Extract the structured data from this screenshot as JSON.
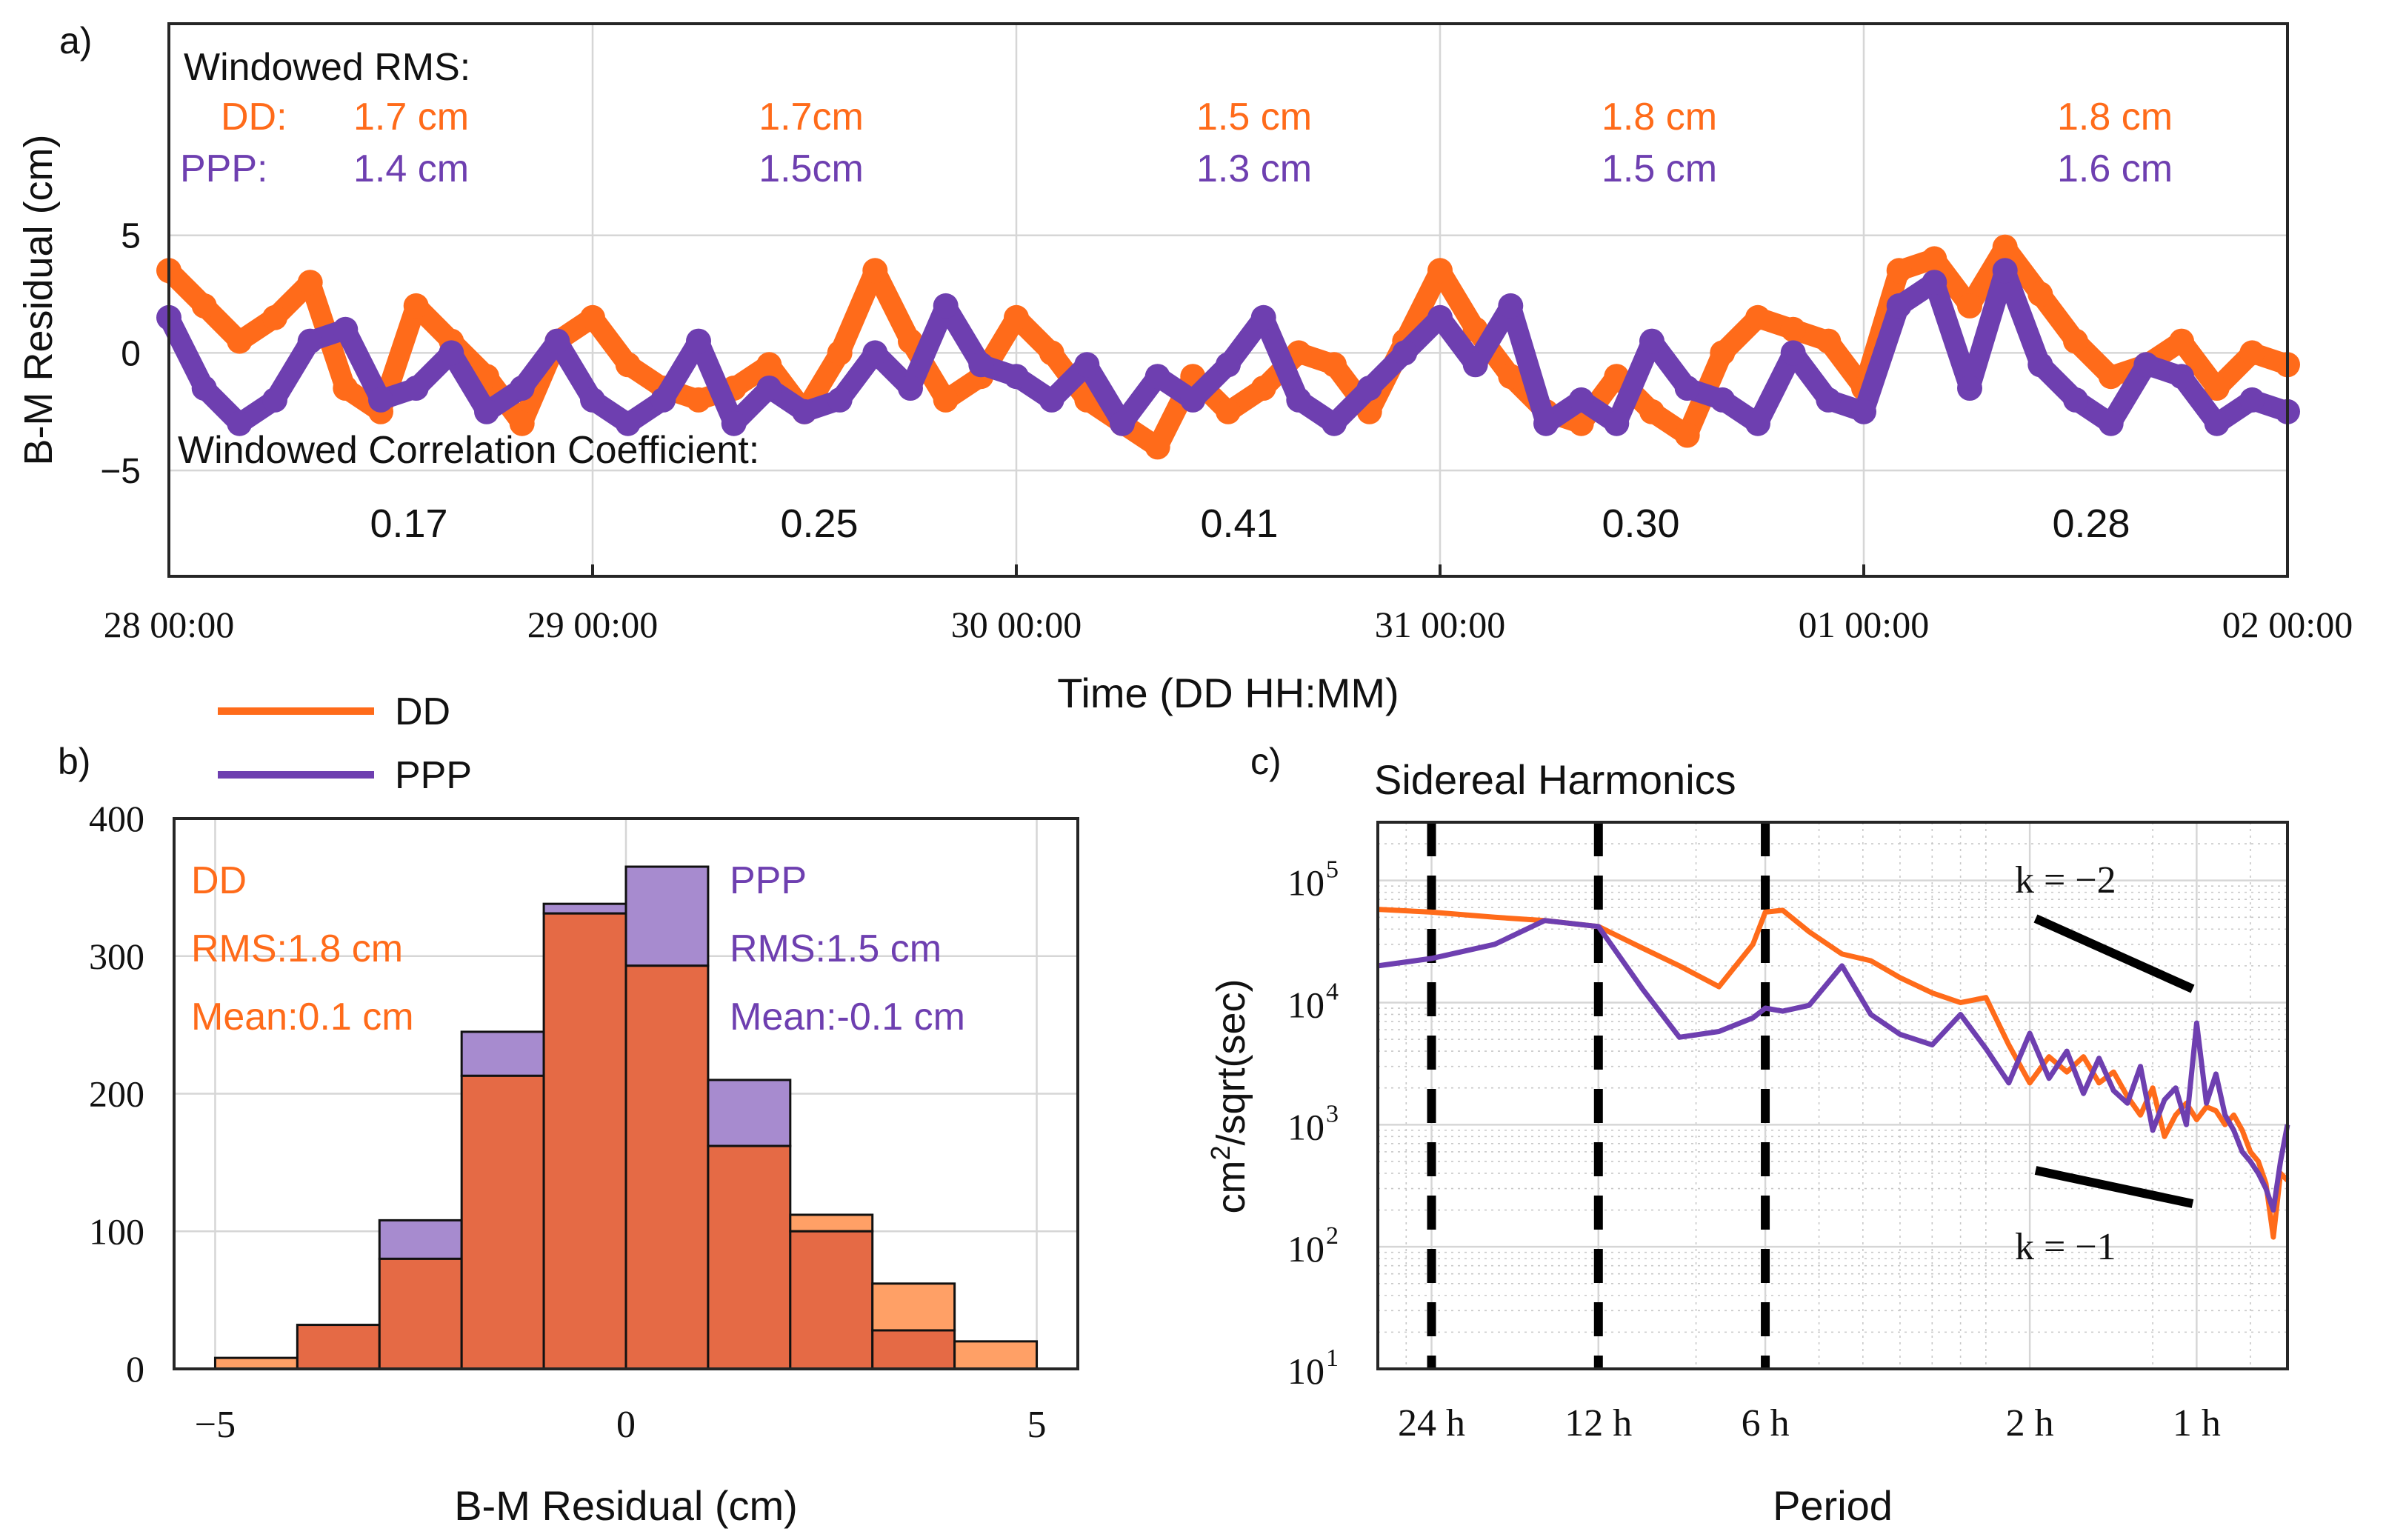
{
  "colors": {
    "dd": "#ff6b1a",
    "ppp": "#6e3fb0",
    "dd_bar": "#e56a45",
    "ppp_bar": "#a78bcf",
    "dd_bar_light": "#ffa066",
    "text": "#111111"
  },
  "legend": {
    "dd": "DD",
    "ppp": "PPP"
  },
  "panel_a": {
    "letter": "a)",
    "ylabel": "B-M Residual (cm)",
    "xlabel": "Time (DD HH:MM)",
    "rms_title": "Windowed RMS:",
    "dd_prefix": "DD:",
    "ppp_prefix": "PPP:",
    "corr_title": "Windowed Correlation Coefficient:",
    "windows": [
      {
        "dd_rms": "1.7 cm",
        "ppp_rms": "1.4 cm",
        "corr": "0.17"
      },
      {
        "dd_rms": "1.7cm",
        "ppp_rms": "1.5cm",
        "corr": "0.25"
      },
      {
        "dd_rms": "1.5 cm",
        "ppp_rms": "1.3 cm",
        "corr": "0.41"
      },
      {
        "dd_rms": "1.8 cm",
        "ppp_rms": "1.5 cm",
        "corr": "0.30"
      },
      {
        "dd_rms": "1.8 cm",
        "ppp_rms": "1.6 cm",
        "corr": "0.28"
      }
    ]
  },
  "panel_b": {
    "letter": "b)",
    "xlabel": "B-M Residual (cm)",
    "dd_stats": [
      "DD",
      "RMS:1.8 cm",
      "Mean:0.1 cm"
    ],
    "ppp_stats": [
      "PPP",
      "RMS:1.5 cm",
      "Mean:-0.1 cm"
    ]
  },
  "panel_c": {
    "letter": "c)",
    "title": "Sidereal Harmonics",
    "xlabel": "Period",
    "ylabel_base": "cm",
    "ylabel_sup": "2",
    "ylabel_rest": "/sqrt(sec)",
    "k_minus2": "k = −2",
    "k_minus1": "k = −1"
  },
  "chart_data": [
    {
      "type": "scatter",
      "title": "",
      "xlabel": "Time (DD HH:MM)",
      "ylabel": "B-M Residual (cm)",
      "x_range_hours": [
        0,
        120
      ],
      "ylim": [
        -9.5,
        14
      ],
      "yticks": [
        -5,
        0,
        5
      ],
      "ytick_labels": [
        "−5",
        "0",
        "5"
      ],
      "xticks_hours": [
        0,
        24,
        48,
        72,
        96,
        120
      ],
      "xtick_labels": [
        "28 00:00",
        "29 00:00",
        "30 00:00",
        "31 00:00",
        "01 00:00",
        "02 00:00"
      ],
      "grid": true,
      "series": [
        {
          "name": "DD",
          "x": [
            0,
            2,
            4,
            6,
            8,
            10,
            12,
            14,
            16,
            18,
            20,
            22,
            24,
            26,
            28,
            30,
            32,
            34,
            36,
            38,
            40,
            42,
            44,
            46,
            48,
            50,
            52,
            54,
            56,
            58,
            60,
            62,
            64,
            66,
            68,
            70,
            72,
            74,
            76,
            78,
            80,
            82,
            84,
            86,
            88,
            90,
            92,
            94,
            96,
            98,
            100,
            102,
            104,
            106,
            108,
            110,
            112,
            114,
            116,
            118,
            120
          ],
          "y": [
            3.5,
            2.0,
            0.5,
            1.5,
            3.0,
            -1.5,
            -2.5,
            2.0,
            0.5,
            -1.0,
            -3.0,
            0.5,
            1.5,
            -0.5,
            -1.5,
            -2.0,
            -1.5,
            -0.5,
            -2.5,
            0.0,
            3.5,
            0.5,
            -2.0,
            -1.0,
            1.5,
            0.0,
            -2.0,
            -3.0,
            -4.0,
            -1.0,
            -2.5,
            -1.5,
            0.0,
            -0.5,
            -2.5,
            0.5,
            3.5,
            1.0,
            -1.0,
            -2.5,
            -3.0,
            -1.0,
            -2.5,
            -3.5,
            0.0,
            1.5,
            1.0,
            0.5,
            -1.5,
            3.5,
            4.0,
            2.0,
            4.5,
            2.5,
            0.5,
            -1.0,
            -0.5,
            0.5,
            -1.5,
            0.0,
            -0.5
          ]
        },
        {
          "name": "PPP",
          "x": [
            0,
            2,
            4,
            6,
            8,
            10,
            12,
            14,
            16,
            18,
            20,
            22,
            24,
            26,
            28,
            30,
            32,
            34,
            36,
            38,
            40,
            42,
            44,
            46,
            48,
            50,
            52,
            54,
            56,
            58,
            60,
            62,
            64,
            66,
            68,
            70,
            72,
            74,
            76,
            78,
            80,
            82,
            84,
            86,
            88,
            90,
            92,
            94,
            96,
            98,
            100,
            102,
            104,
            106,
            108,
            110,
            112,
            114,
            116,
            118,
            120
          ],
          "y": [
            1.5,
            -1.5,
            -3.0,
            -2.0,
            0.5,
            1.0,
            -2.0,
            -1.5,
            0.0,
            -2.5,
            -1.5,
            0.5,
            -2.0,
            -3.0,
            -2.0,
            0.5,
            -3.0,
            -1.5,
            -2.5,
            -2.0,
            0.0,
            -1.5,
            2.0,
            -0.5,
            -1.0,
            -2.0,
            -0.5,
            -3.0,
            -1.0,
            -2.0,
            -0.5,
            1.5,
            -2.0,
            -3.0,
            -1.5,
            0.0,
            1.5,
            -0.5,
            2.0,
            -3.0,
            -2.0,
            -3.0,
            0.5,
            -1.5,
            -2.0,
            -3.0,
            0.0,
            -2.0,
            -2.5,
            2.0,
            3.0,
            -1.5,
            3.5,
            -0.5,
            -2.0,
            -3.0,
            -0.5,
            -1.0,
            -3.0,
            -2.0,
            -2.5
          ]
        }
      ]
    },
    {
      "type": "bar",
      "title": "",
      "xlabel": "B-M Residual (cm)",
      "ylabel": "",
      "bin_edges": [
        -5,
        -4,
        -3,
        -2,
        -1,
        0,
        1,
        2,
        3,
        4,
        5
      ],
      "xlim": [
        -5.5,
        5.5
      ],
      "ylim": [
        0,
        400
      ],
      "xticks": [
        -5,
        0,
        5
      ],
      "xtick_labels": [
        "−5",
        "0",
        "5"
      ],
      "yticks": [
        0,
        100,
        200,
        300,
        400
      ],
      "ytick_labels": [
        "0",
        "100",
        "200",
        "300",
        "400"
      ],
      "grid": true,
      "series": [
        {
          "name": "DD",
          "values": [
            8,
            32,
            80,
            213,
            331,
            293,
            162,
            112,
            62,
            20
          ]
        },
        {
          "name": "PPP",
          "values": [
            0,
            32,
            108,
            245,
            338,
            365,
            210,
            100,
            28,
            0
          ]
        }
      ]
    },
    {
      "type": "line",
      "title": "Sidereal Harmonics",
      "xlabel": "Period",
      "ylabel": "cm^2/sqrt(sec)",
      "x_scale": "log",
      "y_scale": "log",
      "x_unit": "cycles per day",
      "xlim": [
        0.8,
        35
      ],
      "ylim": [
        10,
        300000
      ],
      "yticks": [
        10,
        100,
        1000,
        10000,
        100000
      ],
      "ytick_labels": [
        "10",
        "10",
        "10",
        "10",
        "10"
      ],
      "ytick_exponents": [
        "1",
        "2",
        "3",
        "4",
        "5"
      ],
      "xticks": [
        1,
        2,
        4,
        12,
        24
      ],
      "xtick_labels": [
        "24 h",
        "12 h",
        "6 h",
        "2 h",
        "1 h"
      ],
      "dashed_verticals": [
        1,
        2,
        4
      ],
      "grid": true,
      "series": [
        {
          "name": "DD",
          "x": [
            0.8,
            1.0,
            1.3,
            1.6,
            2.0,
            2.4,
            2.8,
            3.3,
            3.8,
            4.0,
            4.3,
            4.8,
            5.5,
            6.2,
            7.0,
            8.0,
            9.0,
            10.0,
            11.0,
            12.0,
            13.0,
            14.0,
            15.0,
            16.0,
            17.0,
            18.0,
            19.0,
            20.0,
            21.0,
            22.0,
            23.0,
            24.0,
            25.0,
            26.0,
            27.0,
            28.0,
            29.0,
            30.0,
            31.0,
            32.0,
            33.0,
            34.0,
            35.0
          ],
          "y": [
            58000,
            55000,
            50000,
            47000,
            42000,
            28000,
            20000,
            13500,
            30000,
            55000,
            57000,
            38000,
            25000,
            22000,
            16000,
            12000,
            10000,
            11000,
            4500,
            2200,
            3600,
            2700,
            3600,
            2200,
            2700,
            1700,
            1200,
            2000,
            800,
            1200,
            1500,
            1100,
            1400,
            1300,
            1000,
            1200,
            900,
            600,
            500,
            330,
            120,
            400,
            350
          ]
        },
        {
          "name": "PPP",
          "x": [
            0.8,
            1.0,
            1.3,
            1.6,
            2.0,
            2.4,
            2.8,
            3.3,
            3.8,
            4.0,
            4.3,
            4.8,
            5.5,
            6.2,
            7.0,
            8.0,
            9.0,
            10.0,
            11.0,
            12.0,
            13.0,
            14.0,
            15.0,
            16.0,
            17.0,
            18.0,
            19.0,
            20.0,
            21.0,
            22.0,
            23.0,
            24.0,
            25.0,
            26.0,
            27.0,
            28.0,
            29.0,
            30.0,
            31.0,
            32.0,
            33.0,
            34.0,
            35.0
          ],
          "y": [
            20000,
            23000,
            30000,
            47000,
            42000,
            13000,
            5200,
            5800,
            7500,
            9000,
            8500,
            9500,
            20000,
            8000,
            5500,
            4500,
            8000,
            4200,
            2200,
            5600,
            2400,
            4000,
            1800,
            3500,
            1900,
            1500,
            3000,
            900,
            1600,
            2000,
            1000,
            6800,
            1500,
            2600,
            1200,
            900,
            600,
            500,
            400,
            300,
            200,
            500,
            1000
          ]
        }
      ]
    }
  ]
}
